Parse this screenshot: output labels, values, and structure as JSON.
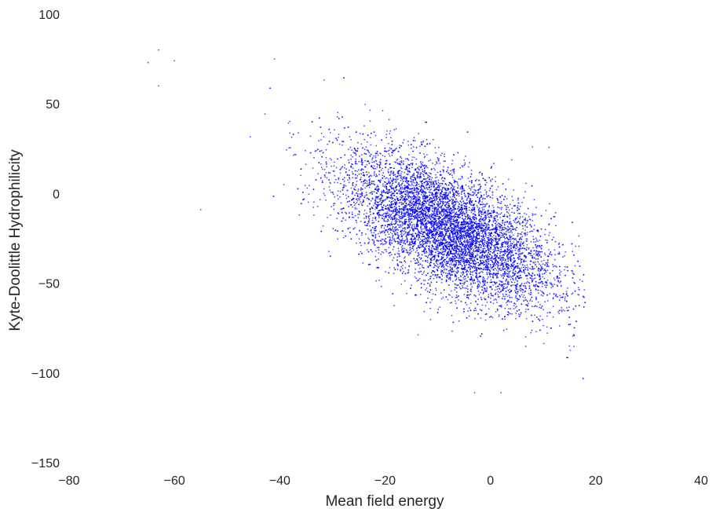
{
  "chart_data": {
    "type": "scatter",
    "title": "",
    "xlabel": "Mean field energy",
    "ylabel": "Kyte-Doolittle Hydrophilicity",
    "xlim": [
      -80,
      40
    ],
    "ylim": [
      -150,
      100
    ],
    "xticks": [
      "−80",
      "−60",
      "−40",
      "−20",
      "0",
      "20",
      "40"
    ],
    "yticks": [
      "−150",
      "−100",
      "−50",
      "0",
      "50",
      "100"
    ],
    "grid": false,
    "legend": "none",
    "marker_color": "#0000ff",
    "point_cloud": {
      "description_values_in_data_units": true,
      "center": [
        -8,
        -20
      ],
      "correlation": -0.62,
      "x_std": 10,
      "y_std": 21,
      "x_range_observed": [
        -65,
        18
      ],
      "y_range_observed": [
        -111,
        80
      ]
    },
    "notable_points": [
      {
        "x": -65,
        "y": 73
      },
      {
        "x": -63,
        "y": 80
      },
      {
        "x": -63,
        "y": 60
      },
      {
        "x": -60,
        "y": 74
      },
      {
        "x": -55,
        "y": -9
      },
      {
        "x": -41,
        "y": 75
      },
      {
        "x": 17,
        "y": -48
      },
      {
        "x": 15,
        "y": -85
      },
      {
        "x": -3,
        "y": -111
      },
      {
        "x": 2,
        "y": -111
      },
      {
        "x": 8,
        "y": 26
      }
    ]
  }
}
